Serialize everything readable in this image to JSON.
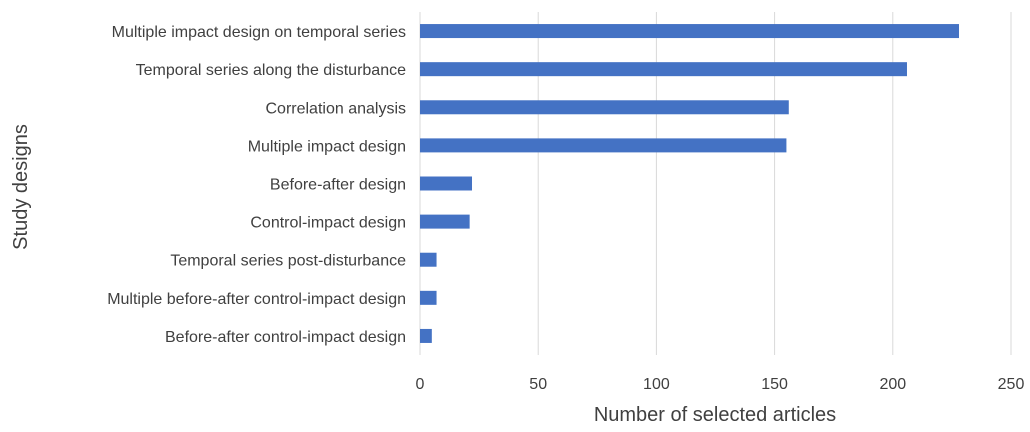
{
  "chart_data": {
    "type": "bar",
    "orientation": "horizontal",
    "categories": [
      "Multiple impact design on temporal series",
      "Temporal series along the disturbance",
      "Correlation analysis",
      "Multiple impact design",
      "Before-after design",
      "Control-impact design",
      "Temporal series post-disturbance",
      "Multiple before-after control-impact design",
      "Before-after control-impact design"
    ],
    "values": [
      228,
      206,
      156,
      155,
      22,
      21,
      7,
      7,
      5
    ],
    "xlabel": "Number of selected articles",
    "ylabel": "Study designs",
    "xlim": [
      0,
      250
    ],
    "xticks": [
      0,
      50,
      100,
      150,
      200,
      250
    ],
    "grid": true,
    "legend": "none",
    "bar_color": "#4472c4"
  }
}
